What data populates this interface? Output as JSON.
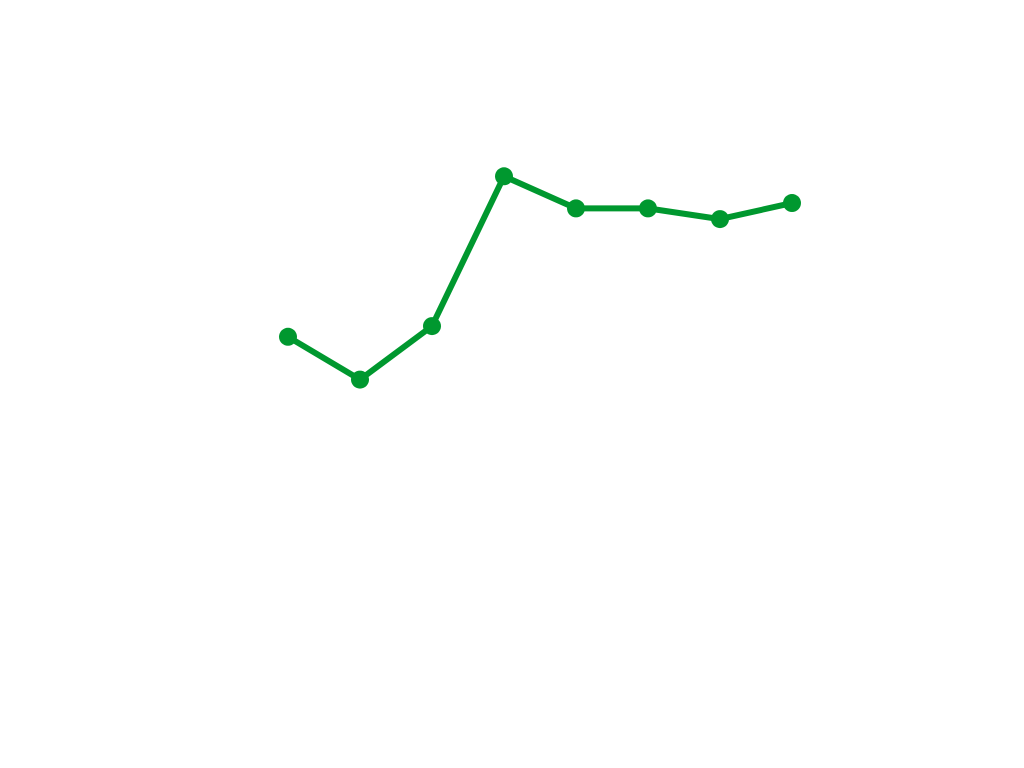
{
  "chart_data": {
    "type": "line",
    "x": [
      1,
      2,
      3,
      4,
      5,
      6,
      7,
      8
    ],
    "values": [
      52,
      44,
      54,
      82,
      76,
      76,
      74,
      77
    ],
    "ylim": [
      0,
      100
    ],
    "grid": false,
    "axes_visible": false,
    "markers": true,
    "color": "#00982f"
  }
}
